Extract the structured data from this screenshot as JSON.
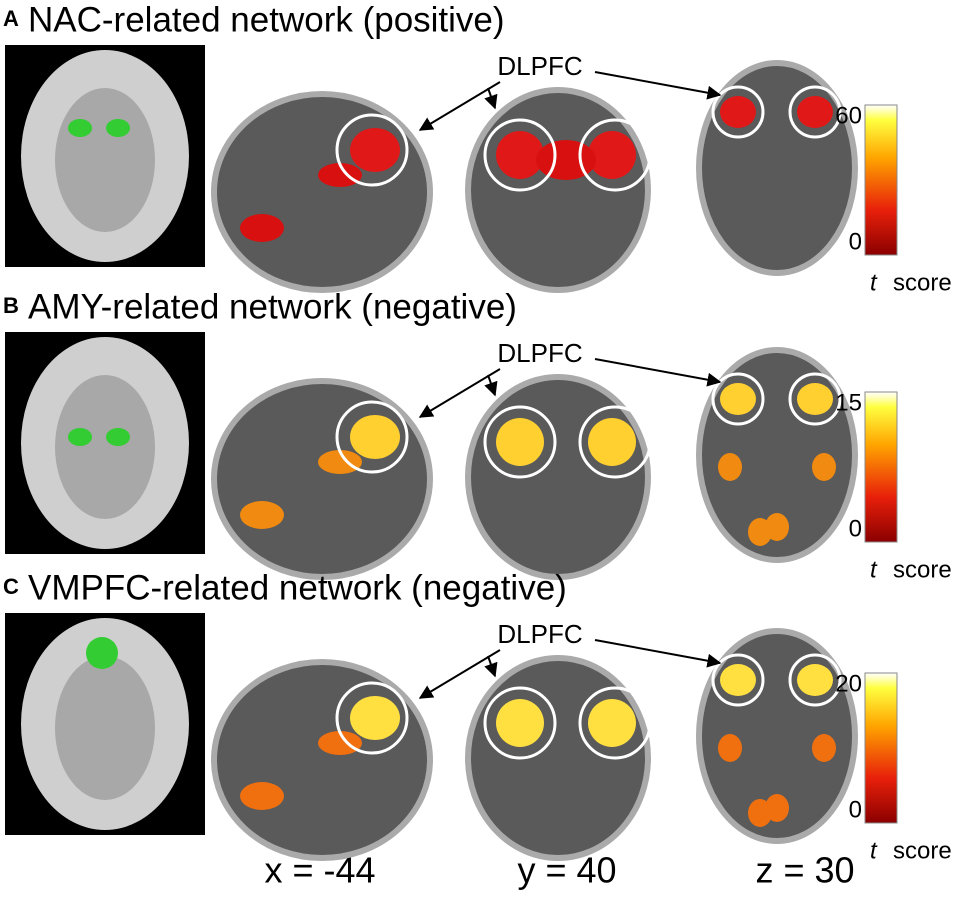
{
  "panels": [
    {
      "label": "A",
      "title": "NAC-related network (positive)",
      "roi": "DLPFC",
      "colorbar": {
        "max": 60,
        "min": 0,
        "variable": "t",
        "unit": "score"
      }
    },
    {
      "label": "B",
      "title": "AMY-related network (negative)",
      "roi": "DLPFC",
      "colorbar": {
        "max": 15,
        "min": 0,
        "variable": "t",
        "unit": "score"
      }
    },
    {
      "label": "C",
      "title": "VMPFC-related network (negative)",
      "roi": "DLPFC",
      "colorbar": {
        "max": 20,
        "min": 0,
        "variable": "t",
        "unit": "score"
      }
    }
  ],
  "coordinates": [
    "x = -44",
    "y = 40",
    "z = 30"
  ]
}
